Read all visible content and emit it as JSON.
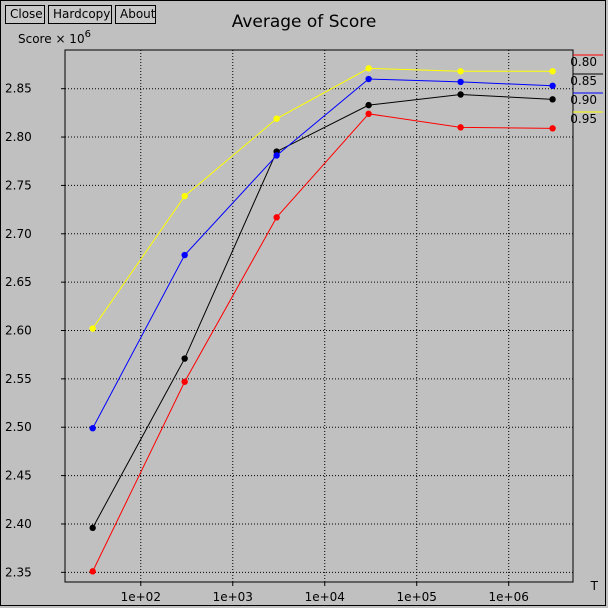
{
  "toolbar": {
    "close_label": "Close",
    "hardcopy_label": "Hardcopy",
    "about_label": "About"
  },
  "chart_data": {
    "type": "line",
    "title": "Average of Score",
    "ylabel": "Score",
    "ylabel_multiplier": "× 10",
    "ylabel_exponent": "6",
    "xlabel": "T",
    "x_scale": "log",
    "x": [
      30,
      300,
      3000,
      30000,
      300000,
      3000000
    ],
    "xlim": [
      15,
      5000000
    ],
    "ylim": [
      2.34,
      2.89
    ],
    "x_ticks": [
      100,
      1000,
      10000,
      100000,
      1000000
    ],
    "x_tick_labels": [
      "1e+02",
      "1e+03",
      "1e+04",
      "1e+05",
      "1e+06"
    ],
    "y_ticks": [
      2.35,
      2.4,
      2.45,
      2.5,
      2.55,
      2.6,
      2.65,
      2.7,
      2.75,
      2.8,
      2.85
    ],
    "y_tick_labels": [
      "2.35",
      "2.40",
      "2.45",
      "2.50",
      "2.55",
      "2.60",
      "2.65",
      "2.70",
      "2.75",
      "2.80",
      "2.85"
    ],
    "grid": true,
    "legend_position": "right",
    "series": [
      {
        "name": "0.80",
        "color": "#ff0000",
        "values": [
          2.351,
          2.547,
          2.717,
          2.824,
          2.81,
          2.809
        ]
      },
      {
        "name": "0.85",
        "color": "#000000",
        "values": [
          2.396,
          2.571,
          2.785,
          2.833,
          2.844,
          2.839
        ]
      },
      {
        "name": "0.90",
        "color": "#0000ff",
        "values": [
          2.499,
          2.678,
          2.781,
          2.86,
          2.857,
          2.853
        ]
      },
      {
        "name": "0.95",
        "color": "#ffff00",
        "values": [
          2.602,
          2.739,
          2.819,
          2.871,
          2.868,
          2.868
        ]
      }
    ]
  }
}
